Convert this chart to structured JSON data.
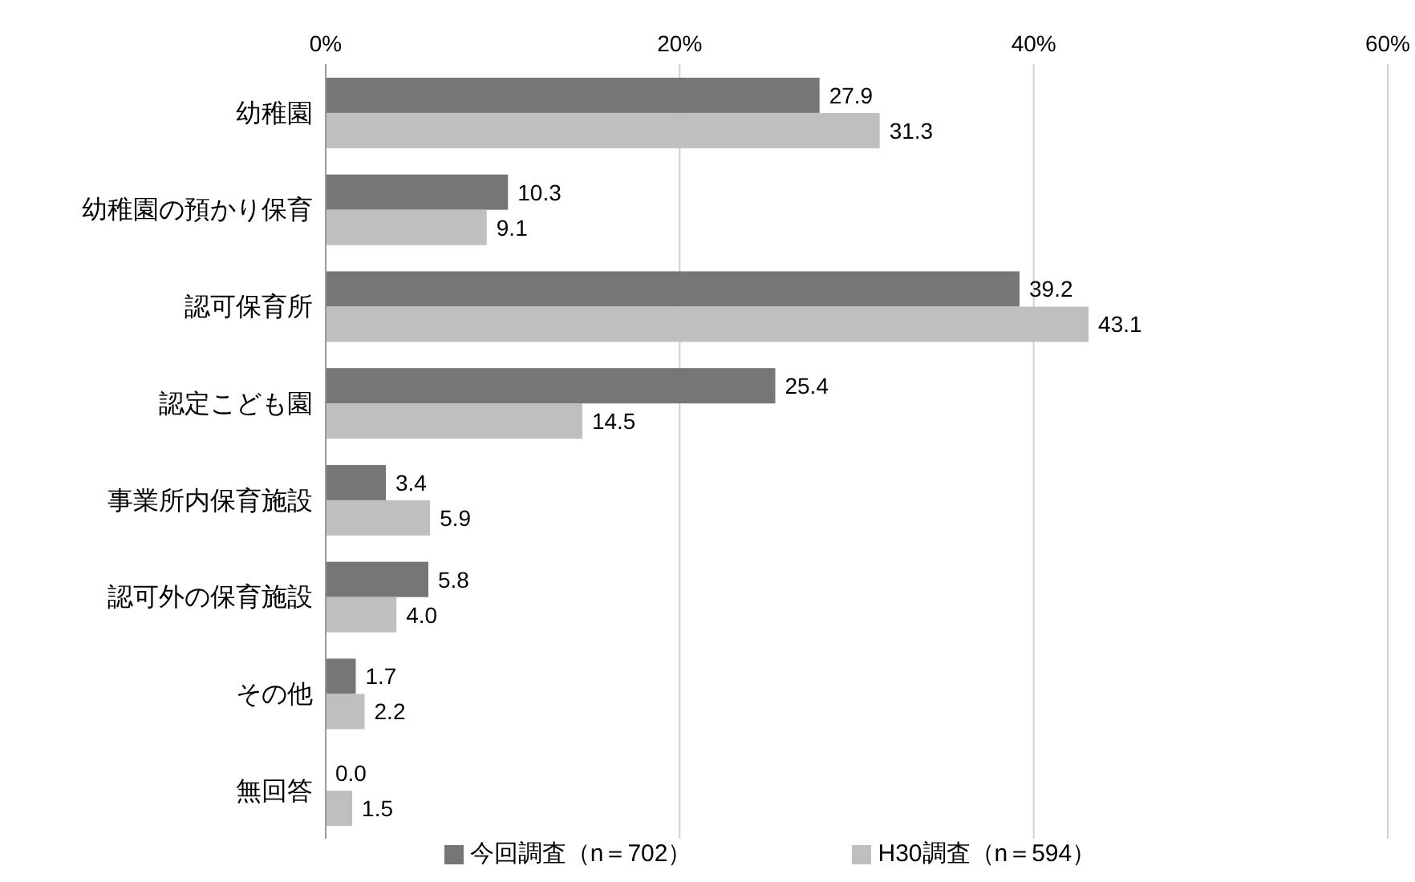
{
  "chart_data": {
    "type": "bar",
    "orientation": "horizontal",
    "categories": [
      "幼稚園",
      "幼稚園の預かり保育",
      "認可保育所",
      "認定こども園",
      "事業所内保育施設",
      "認可外の保育施設",
      "その他",
      "無回答"
    ],
    "series": [
      {
        "name": "今回調査（n＝702）",
        "color": "#767676",
        "values": [
          27.9,
          10.3,
          39.2,
          25.4,
          3.4,
          5.8,
          1.7,
          0.0
        ],
        "value_labels": [
          "27.9",
          "10.3",
          "39.2",
          "25.4",
          "3.4",
          "5.8",
          "1.7",
          "0.0"
        ]
      },
      {
        "name": "H30調査（n＝594）",
        "color": "#bfbfbf",
        "values": [
          31.3,
          9.1,
          43.1,
          14.5,
          5.9,
          4.0,
          2.2,
          1.5
        ],
        "value_labels": [
          "31.3",
          "9.1",
          "43.1",
          "14.5",
          "5.9",
          "4.0",
          "2.2",
          "1.5"
        ]
      }
    ],
    "xlim": [
      0,
      60
    ],
    "xticks": [
      {
        "value": 0,
        "label": "0%"
      },
      {
        "value": 20,
        "label": "20%"
      },
      {
        "value": 40,
        "label": "40%"
      },
      {
        "value": 60,
        "label": "60%"
      }
    ],
    "grid": "x",
    "legend": "bottom"
  }
}
